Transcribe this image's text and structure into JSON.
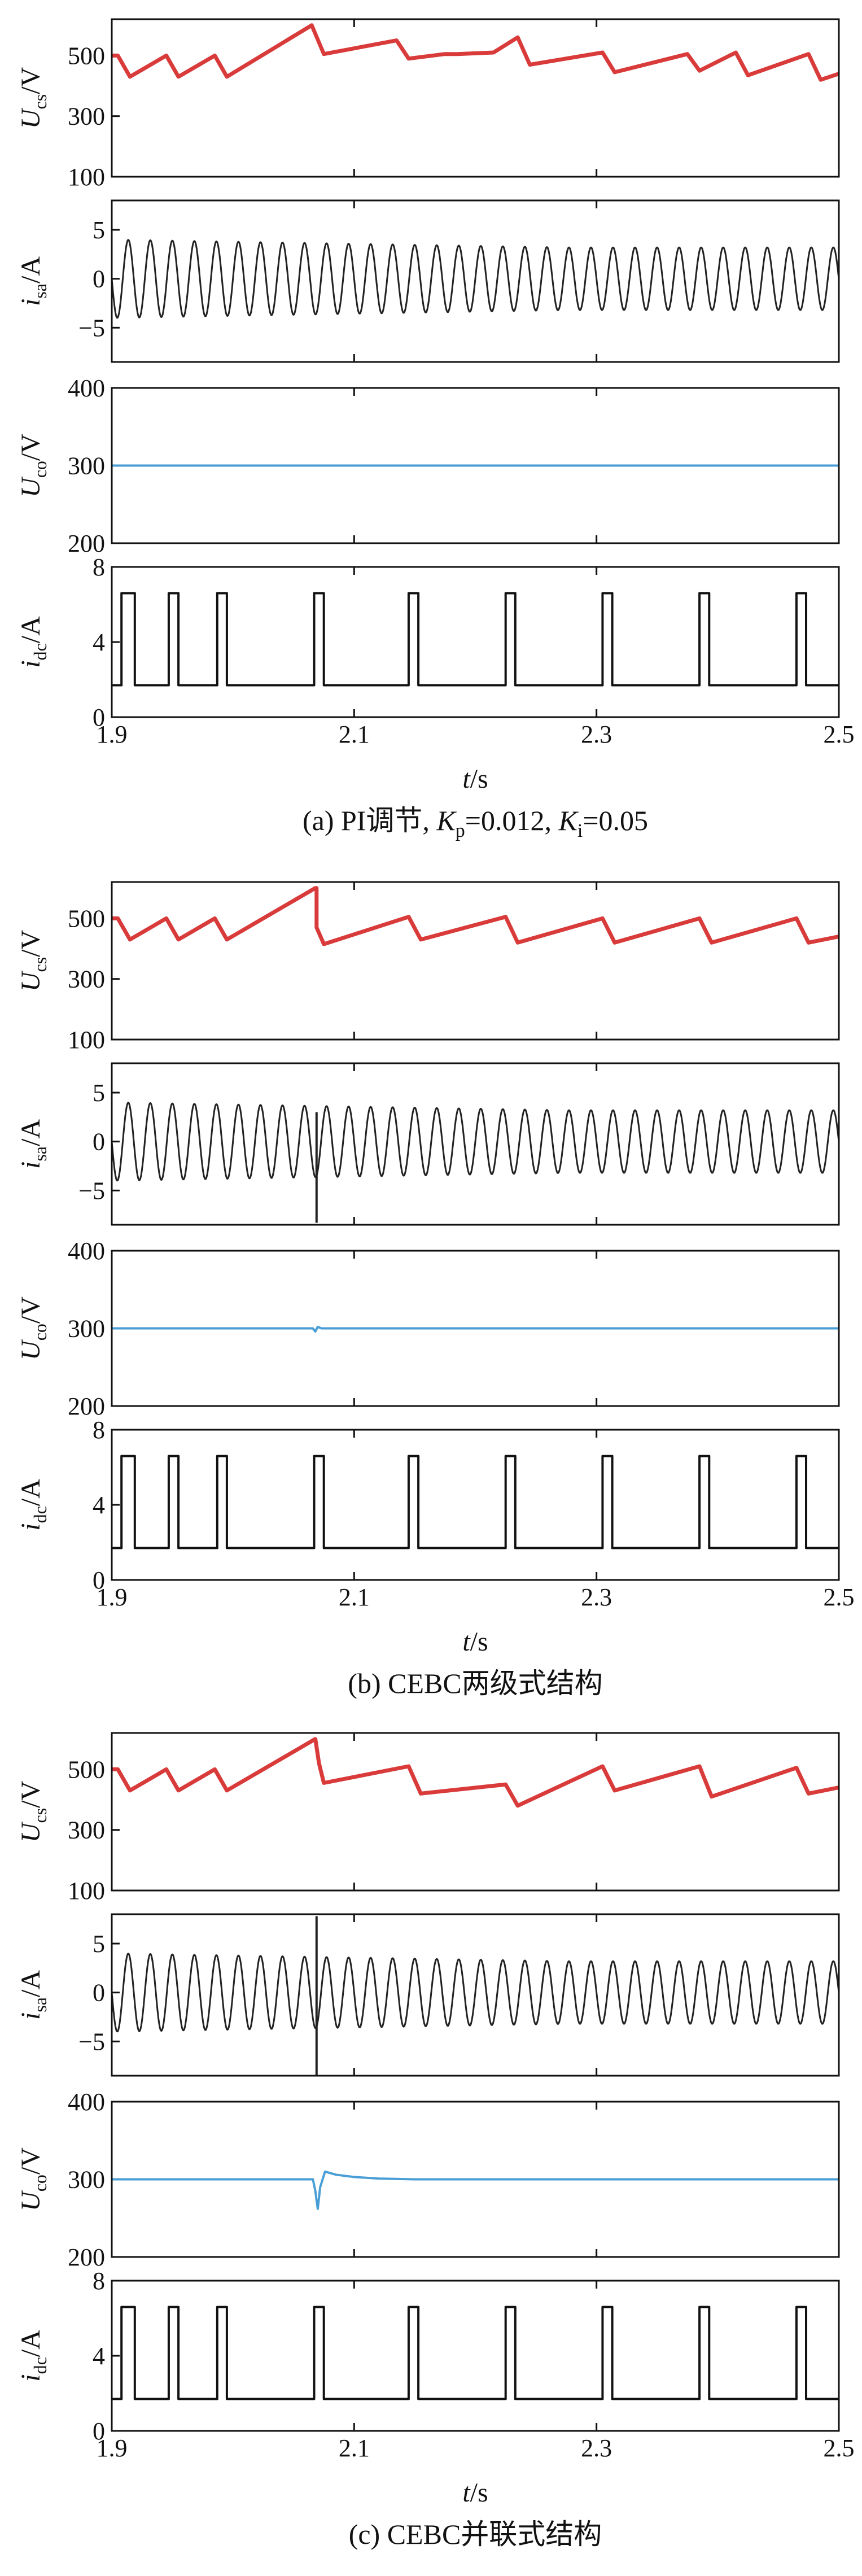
{
  "figure": {
    "x_axis": {
      "label_var": "t",
      "label_unit": "/s",
      "ticks": [
        "1.9",
        "2.1",
        "2.3",
        "2.5"
      ],
      "tick_values": [
        1.9,
        2.1,
        2.3,
        2.5
      ],
      "range": [
        1.9,
        2.5
      ]
    },
    "colors": {
      "ucs": "#d93b3b",
      "isa": "#222222",
      "uco": "#4a9ed6",
      "idc": "#111111"
    },
    "panels": [
      {
        "caption_prefix": "(a) PI调节, ",
        "k1": "K",
        "k1_sub": "p",
        "k1_val": "=0.012, ",
        "k2": "K",
        "k2_sub": "i",
        "k2_val": "=0.05"
      },
      {
        "caption": "(b) CEBC两级式结构"
      },
      {
        "caption": "(c) CEBC并联式结构"
      }
    ],
    "rows": [
      {
        "key": "ucs",
        "var": "U",
        "sub": "cs",
        "unit": "/V",
        "ticks": [
          "500",
          "300",
          "100"
        ],
        "tick_values": [
          500,
          300,
          100
        ],
        "range": [
          100,
          620
        ]
      },
      {
        "key": "isa",
        "var": "i",
        "sub": "sa",
        "unit": "/A",
        "ticks": [
          "5",
          "0",
          "−5"
        ],
        "tick_values": [
          5,
          0,
          -5
        ],
        "range": [
          -8.5,
          8
        ]
      },
      {
        "key": "uco",
        "var": "U",
        "sub": "co",
        "unit": "/V",
        "ticks": [
          "400",
          "300",
          "200"
        ],
        "tick_values": [
          400,
          300,
          200
        ],
        "range": [
          200,
          400
        ]
      },
      {
        "key": "idc",
        "var": "i",
        "sub": "dc",
        "unit": "/A",
        "ticks": [
          "8",
          "4",
          "0"
        ],
        "tick_values": [
          8,
          4,
          0
        ],
        "range": [
          0,
          8
        ]
      }
    ]
  },
  "chart_data": [
    {
      "panel": "a",
      "type": "line",
      "series": [
        {
          "key": "ucs",
          "x": [
            1.9,
            1.905,
            1.915,
            1.945,
            1.955,
            1.985,
            1.995,
            2.065,
            2.075,
            2.135,
            2.145,
            2.175,
            2.185,
            2.215,
            2.235,
            2.245,
            2.305,
            2.315,
            2.375,
            2.385,
            2.415,
            2.425,
            2.475,
            2.485,
            2.5
          ],
          "y": [
            500,
            500,
            430,
            500,
            430,
            500,
            430,
            600,
            505,
            550,
            490,
            505,
            505,
            510,
            560,
            470,
            510,
            445,
            505,
            450,
            510,
            435,
            505,
            420,
            440
          ]
        },
        {
          "key": "isa",
          "amplitude": [
            4,
            3.2
          ],
          "cycles": 33
        },
        {
          "key": "uco",
          "x": [
            1.9,
            2.5
          ],
          "y": [
            300,
            300
          ]
        },
        {
          "key": "idc",
          "low": 1.7,
          "high": 6.6,
          "pulses": [
            [
              1.908,
              1.919
            ],
            [
              1.947,
              1.955
            ],
            [
              1.987,
              1.995
            ],
            [
              2.067,
              2.075
            ],
            [
              2.145,
              2.153
            ],
            [
              2.225,
              2.233
            ],
            [
              2.305,
              2.313
            ],
            [
              2.385,
              2.393
            ],
            [
              2.465,
              2.473
            ]
          ]
        }
      ]
    },
    {
      "panel": "b",
      "type": "line",
      "series": [
        {
          "key": "ucs",
          "x": [
            1.9,
            1.905,
            1.915,
            1.945,
            1.955,
            1.985,
            1.995,
            2.068,
            2.069,
            2.069,
            2.075,
            2.145,
            2.155,
            2.225,
            2.235,
            2.305,
            2.315,
            2.385,
            2.395,
            2.465,
            2.475,
            2.5
          ],
          "y": [
            500,
            500,
            430,
            500,
            430,
            500,
            430,
            600,
            600,
            470,
            415,
            505,
            430,
            505,
            420,
            500,
            420,
            500,
            420,
            500,
            420,
            440
          ]
        },
        {
          "key": "isa",
          "amplitude": [
            4,
            3.2
          ],
          "cycles": 33,
          "spike": {
            "x": 2.069,
            "y": [
              3,
              -8.3
            ]
          }
        },
        {
          "key": "uco",
          "x": [
            1.9,
            2.066,
            2.068,
            2.07,
            2.073,
            2.5
          ],
          "y": [
            300,
            300,
            296,
            302,
            300,
            300
          ]
        },
        {
          "key": "idc",
          "low": 1.7,
          "high": 6.6,
          "pulses": [
            [
              1.908,
              1.919
            ],
            [
              1.947,
              1.955
            ],
            [
              1.987,
              1.995
            ],
            [
              2.067,
              2.075
            ],
            [
              2.145,
              2.153
            ],
            [
              2.225,
              2.233
            ],
            [
              2.305,
              2.313
            ],
            [
              2.385,
              2.393
            ],
            [
              2.465,
              2.473
            ]
          ]
        }
      ]
    },
    {
      "panel": "c",
      "type": "line",
      "series": [
        {
          "key": "ucs",
          "x": [
            1.9,
            1.905,
            1.915,
            1.945,
            1.955,
            1.985,
            1.995,
            2.068,
            2.071,
            2.075,
            2.145,
            2.155,
            2.225,
            2.235,
            2.305,
            2.315,
            2.385,
            2.395,
            2.465,
            2.475,
            2.5
          ],
          "y": [
            500,
            500,
            430,
            500,
            430,
            500,
            430,
            600,
            520,
            455,
            510,
            420,
            450,
            380,
            510,
            430,
            510,
            410,
            505,
            420,
            440
          ]
        },
        {
          "key": "isa",
          "amplitude": [
            4,
            3.2
          ],
          "cycles": 33,
          "spike": {
            "x": 2.069,
            "y": [
              7.8,
              -8.5
            ]
          }
        },
        {
          "key": "uco",
          "x": [
            1.9,
            2.066,
            2.068,
            2.07,
            2.072,
            2.076,
            2.085,
            2.1,
            2.12,
            2.15,
            2.5
          ],
          "y": [
            300,
            300,
            285,
            262,
            290,
            310,
            306,
            303,
            301,
            300,
            300
          ]
        },
        {
          "key": "idc",
          "low": 1.7,
          "high": 6.6,
          "pulses": [
            [
              1.908,
              1.919
            ],
            [
              1.947,
              1.955
            ],
            [
              1.987,
              1.995
            ],
            [
              2.067,
              2.075
            ],
            [
              2.145,
              2.153
            ],
            [
              2.225,
              2.233
            ],
            [
              2.305,
              2.313
            ],
            [
              2.385,
              2.393
            ],
            [
              2.465,
              2.473
            ]
          ]
        }
      ]
    }
  ]
}
